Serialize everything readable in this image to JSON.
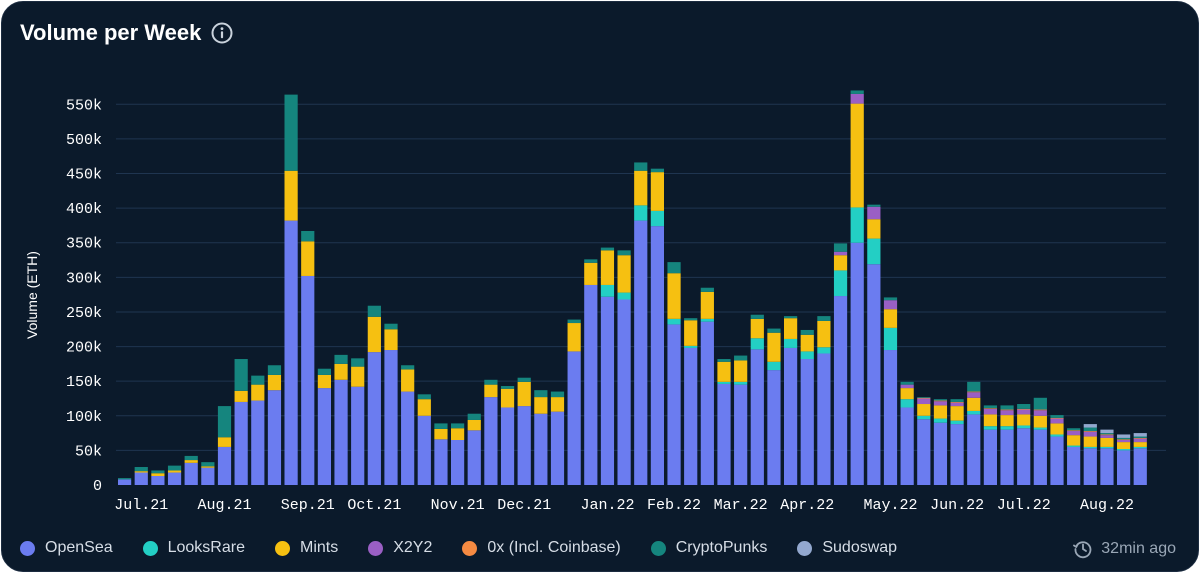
{
  "header": {
    "title": "Volume per Week",
    "info_icon": "info-icon"
  },
  "footer": {
    "updated_text": "32min ago",
    "clock_icon": "history-clock-icon"
  },
  "colors": {
    "background": "#0b1a2b",
    "grid": "#1f3550",
    "axis_text": "#ffffff",
    "OpenSea": "#6b7cf0",
    "LooksRare": "#23cfc4",
    "Mints": "#f6c011",
    "X2Y2": "#9a5fc4",
    "0x": "#f58a42",
    "CryptoPunks": "#15857e",
    "Sudoswap": "#93a8cf"
  },
  "chart_data": {
    "type": "bar",
    "stacked": true,
    "ylabel": "Volume (ETH)",
    "xlabel": "",
    "ylim": [
      0,
      575000
    ],
    "yticks": [
      0,
      50000,
      100000,
      150000,
      200000,
      250000,
      300000,
      350000,
      400000,
      450000,
      500000,
      550000
    ],
    "ytick_labels": [
      "0",
      "50k",
      "100k",
      "150k",
      "200k",
      "250k",
      "300k",
      "350k",
      "400k",
      "450k",
      "500k",
      "550k"
    ],
    "grid": true,
    "legend_position": "bottom",
    "x_tick_labels": [
      {
        "label": "Jul.21",
        "week_index": 1
      },
      {
        "label": "Aug.21",
        "week_index": 6
      },
      {
        "label": "Sep.21",
        "week_index": 11
      },
      {
        "label": "Oct.21",
        "week_index": 15
      },
      {
        "label": "Nov.21",
        "week_index": 20
      },
      {
        "label": "Dec.21",
        "week_index": 24
      },
      {
        "label": "Jan.22",
        "week_index": 29
      },
      {
        "label": "Feb.22",
        "week_index": 33
      },
      {
        "label": "Mar.22",
        "week_index": 37
      },
      {
        "label": "Apr.22",
        "week_index": 41
      },
      {
        "label": "May.22",
        "week_index": 46
      },
      {
        "label": "Jun.22",
        "week_index": 50
      },
      {
        "label": "Jul.22",
        "week_index": 54
      },
      {
        "label": "Aug.22",
        "week_index": 59
      }
    ],
    "series_order": [
      "OpenSea",
      "LooksRare",
      "Mints",
      "X2Y2",
      "0x (Incl. Coinbase)",
      "CryptoPunks",
      "Sudoswap"
    ],
    "series": [
      {
        "name": "OpenSea",
        "color": "#6b7cf0",
        "values": [
          8000,
          18000,
          13000,
          18000,
          32000,
          25000,
          55000,
          120000,
          122000,
          137000,
          382000,
          302000,
          140000,
          152000,
          142000,
          192000,
          195000,
          135000,
          100000,
          66000,
          65000,
          79000,
          127000,
          112000,
          114000,
          103000,
          106000,
          193000,
          289000,
          272000,
          268000,
          382000,
          374000,
          232000,
          198000,
          236000,
          146000,
          145000,
          196000,
          166000,
          198000,
          182000,
          190000,
          273000,
          350000,
          319000,
          195000,
          112000,
          95000,
          90000,
          88000,
          102000,
          80000,
          80000,
          82000,
          80000,
          70000,
          55000,
          53000,
          53000,
          50000,
          53000
        ]
      },
      {
        "name": "LooksRare",
        "color": "#23cfc4",
        "values": [
          0,
          0,
          0,
          0,
          0,
          0,
          0,
          0,
          0,
          0,
          0,
          0,
          0,
          0,
          0,
          0,
          0,
          0,
          0,
          0,
          0,
          0,
          0,
          0,
          0,
          0,
          0,
          0,
          0,
          17000,
          10000,
          22000,
          22000,
          8000,
          3000,
          4000,
          3000,
          4000,
          16000,
          12000,
          13000,
          11000,
          9000,
          37000,
          51000,
          37000,
          32000,
          12000,
          5000,
          6000,
          5000,
          5000,
          5000,
          5000,
          4000,
          3000,
          3000,
          2000,
          2000,
          2000,
          2000,
          2000
        ]
      },
      {
        "name": "Mints",
        "color": "#f6c011",
        "values": [
          0,
          2000,
          4000,
          3000,
          4000,
          2000,
          14000,
          16000,
          23000,
          22000,
          72000,
          50000,
          19000,
          23000,
          29000,
          51000,
          30000,
          32000,
          24000,
          15000,
          17000,
          15000,
          18000,
          27000,
          35000,
          24000,
          21000,
          41000,
          32000,
          50000,
          54000,
          50000,
          56000,
          66000,
          37000,
          39000,
          29000,
          31000,
          28000,
          42000,
          30000,
          24000,
          38000,
          22000,
          150000,
          28000,
          27000,
          16000,
          17000,
          19000,
          21000,
          19000,
          17000,
          16000,
          16000,
          17000,
          16000,
          15000,
          15000,
          13000,
          10000,
          7000
        ]
      },
      {
        "name": "X2Y2",
        "color": "#9a5fc4",
        "values": [
          0,
          0,
          0,
          0,
          0,
          0,
          0,
          0,
          0,
          0,
          0,
          0,
          0,
          0,
          0,
          0,
          0,
          0,
          0,
          0,
          0,
          0,
          0,
          0,
          0,
          0,
          0,
          0,
          0,
          0,
          0,
          0,
          0,
          0,
          0,
          0,
          0,
          0,
          0,
          0,
          0,
          0,
          0,
          5000,
          14000,
          18000,
          13000,
          5000,
          8000,
          6000,
          5000,
          8000,
          8000,
          7000,
          7000,
          8000,
          7000,
          6000,
          7000,
          4000,
          3000,
          5000
        ]
      },
      {
        "name": "0x (Incl. Coinbase)",
        "color": "#f58a42",
        "values": [
          0,
          0,
          0,
          0,
          0,
          0,
          0,
          0,
          0,
          0,
          0,
          0,
          0,
          0,
          0,
          0,
          0,
          0,
          0,
          0,
          0,
          0,
          0,
          0,
          0,
          0,
          0,
          0,
          0,
          0,
          0,
          0,
          0,
          0,
          0,
          0,
          0,
          0,
          0,
          0,
          0,
          0,
          0,
          0,
          0,
          0,
          0,
          0,
          1000,
          1000,
          1000,
          1000,
          1000,
          1000,
          1000,
          1000,
          1000,
          1000,
          1000,
          1000,
          1000,
          1000
        ]
      },
      {
        "name": "CryptoPunks",
        "color": "#15857e",
        "values": [
          2000,
          6000,
          4000,
          7000,
          6000,
          6000,
          45000,
          46000,
          13000,
          14000,
          110000,
          15000,
          9000,
          13000,
          12000,
          16000,
          8000,
          6000,
          7000,
          8000,
          7000,
          9000,
          7000,
          4000,
          6000,
          10000,
          8000,
          5000,
          5000,
          4000,
          7000,
          12000,
          5000,
          16000,
          3000,
          6000,
          4000,
          7000,
          6000,
          6000,
          3000,
          7000,
          7000,
          12000,
          5000,
          3000,
          4000,
          4000,
          1000,
          2000,
          4000,
          14000,
          4000,
          6000,
          7000,
          17000,
          4000,
          3000,
          5000,
          2000,
          2000,
          2000
        ]
      },
      {
        "name": "Sudoswap",
        "color": "#93a8cf",
        "values": [
          0,
          0,
          0,
          0,
          0,
          0,
          0,
          0,
          0,
          0,
          0,
          0,
          0,
          0,
          0,
          0,
          0,
          0,
          0,
          0,
          0,
          0,
          0,
          0,
          0,
          0,
          0,
          0,
          0,
          0,
          0,
          0,
          0,
          0,
          0,
          0,
          0,
          0,
          0,
          0,
          0,
          0,
          0,
          0,
          0,
          0,
          0,
          0,
          0,
          0,
          0,
          0,
          0,
          0,
          0,
          0,
          0,
          0,
          5000,
          5000,
          5000,
          5000
        ]
      }
    ]
  }
}
